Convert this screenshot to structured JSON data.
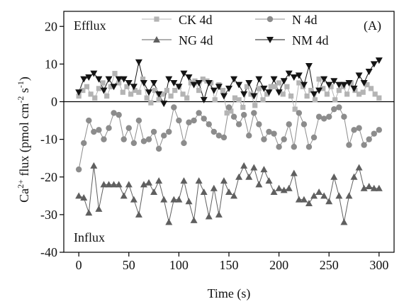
{
  "chart_data": {
    "type": "scatter",
    "panel_label": "(A)",
    "xlabel": "Time (s)",
    "ylabel_parts": {
      "pre": "Ca",
      "sup1": "2+",
      "mid": " flux (pmol cm",
      "sup2": "-2",
      "mid2": " s",
      "sup3": "-1",
      "post": ")"
    },
    "xlim": [
      -15,
      315
    ],
    "ylim": [
      -40,
      24
    ],
    "xticks": [
      0,
      50,
      100,
      150,
      200,
      250,
      300
    ],
    "yticks": [
      -40,
      -30,
      -20,
      -10,
      0,
      10,
      20
    ],
    "zero_line": 0,
    "grid": false,
    "legend_position": "top-center",
    "annotations": [
      {
        "name": "efflux-label",
        "text": "Efflux"
      },
      {
        "name": "influx-label",
        "text": "Influx"
      }
    ],
    "series": [
      {
        "name": "CK 4d",
        "marker": "square",
        "color": "#b4b4b4",
        "x": [
          0,
          4,
          8,
          12,
          16,
          20,
          24,
          28,
          32,
          36,
          40,
          44,
          48,
          52,
          56,
          60,
          64,
          68,
          72,
          76,
          80,
          84,
          88,
          92,
          96,
          100,
          104,
          108,
          112,
          116,
          120,
          124,
          128,
          132,
          136,
          140,
          144,
          148,
          152,
          156,
          160,
          164,
          168,
          172,
          176,
          180,
          184,
          188,
          192,
          196,
          200,
          204,
          208,
          212,
          216,
          220,
          224,
          228,
          232,
          236,
          240,
          244,
          248,
          252,
          256,
          260,
          264,
          268,
          272,
          276,
          280,
          284,
          288,
          292,
          296,
          300
        ],
        "y": [
          1.5,
          3,
          4,
          2,
          1,
          3.5,
          5,
          1.5,
          4,
          7.5,
          5,
          2.5,
          4,
          2,
          3,
          2.5,
          6,
          1,
          -0.3,
          3,
          0.5,
          2,
          3,
          1.5,
          3,
          4,
          2,
          1,
          5,
          5.5,
          3,
          6,
          5.5,
          5,
          0.5,
          4.5,
          3,
          -3,
          -2.5,
          1,
          0.5,
          -1.5,
          4,
          2,
          -1,
          3.5,
          0.5,
          2,
          4,
          4,
          5,
          2,
          4,
          1.5,
          -2,
          5,
          4,
          1.5,
          3,
          0.5,
          6,
          3.5,
          2,
          4,
          0.5,
          3,
          4,
          2,
          5,
          3,
          2,
          2.5,
          4.5,
          3.5,
          2,
          1
        ]
      },
      {
        "name": "N 4d",
        "marker": "circle",
        "color": "#8c8c8c",
        "x": [
          0,
          5,
          10,
          15,
          20,
          25,
          30,
          35,
          40,
          45,
          50,
          55,
          60,
          65,
          70,
          75,
          80,
          85,
          90,
          95,
          100,
          105,
          110,
          115,
          120,
          125,
          130,
          135,
          140,
          145,
          150,
          155,
          160,
          165,
          170,
          175,
          180,
          185,
          190,
          195,
          200,
          205,
          210,
          215,
          220,
          225,
          230,
          235,
          240,
          245,
          250,
          255,
          260,
          265,
          270,
          275,
          280,
          285,
          290,
          295,
          300
        ],
        "y": [
          -18,
          -11,
          -5,
          -8,
          -7.5,
          -10,
          -7,
          -3,
          -3.5,
          -10,
          -7,
          -11,
          -5,
          -10.5,
          -10,
          -8,
          -12.5,
          -9,
          -8,
          -1.5,
          -5,
          -11,
          -5.5,
          -5,
          -3,
          -4.5,
          -6,
          -8,
          -9,
          -9.5,
          -1.5,
          -4,
          -6,
          -3.5,
          -9,
          -3,
          -6,
          -10,
          -8,
          -8.5,
          -12,
          -10,
          -6,
          -12,
          -3,
          -6,
          -12,
          -9.5,
          -4,
          -4.5,
          -4,
          -2,
          -1.5,
          -4,
          -11.5,
          -7.5,
          -7,
          -11.5,
          -10,
          -8.5,
          -7.5
        ]
      },
      {
        "name": "NG 4d",
        "marker": "triangle-up",
        "color": "#5f5f5f",
        "x": [
          0,
          5,
          10,
          15,
          20,
          25,
          30,
          35,
          40,
          45,
          50,
          55,
          60,
          65,
          70,
          75,
          80,
          85,
          90,
          95,
          100,
          105,
          110,
          115,
          120,
          125,
          130,
          135,
          140,
          145,
          150,
          155,
          160,
          165,
          170,
          175,
          180,
          185,
          190,
          195,
          200,
          205,
          210,
          215,
          220,
          225,
          230,
          235,
          240,
          245,
          250,
          255,
          260,
          265,
          270,
          275,
          280,
          285,
          290,
          295,
          300
        ],
        "y": [
          -25,
          -25.5,
          -29.5,
          -17,
          -28.5,
          -22,
          -22,
          -22,
          -22,
          -25,
          -22,
          -26,
          -30,
          -22,
          -21.5,
          -24,
          -21,
          -26,
          -32,
          -26,
          -26,
          -21,
          -26.5,
          -31.5,
          -21,
          -24,
          -30.5,
          -23,
          -30,
          -21,
          -24,
          -25,
          -20,
          -17,
          -20,
          -17.5,
          -22,
          -18,
          -21,
          -24,
          -23,
          -23.5,
          -23,
          -19,
          -26,
          -26,
          -27,
          -25,
          -24,
          -25,
          -26.5,
          -20,
          -25,
          -32,
          -25,
          -20,
          -17.5,
          -23,
          -22.5,
          -23,
          -23
        ]
      },
      {
        "name": "NM 4d",
        "marker": "triangle-down",
        "color": "#141414",
        "x": [
          0,
          5,
          10,
          15,
          20,
          25,
          30,
          35,
          40,
          45,
          50,
          55,
          60,
          65,
          70,
          75,
          80,
          85,
          90,
          95,
          100,
          105,
          110,
          115,
          120,
          125,
          130,
          135,
          140,
          145,
          150,
          155,
          160,
          165,
          170,
          175,
          180,
          185,
          190,
          195,
          200,
          205,
          210,
          215,
          220,
          225,
          230,
          235,
          240,
          245,
          250,
          255,
          260,
          265,
          270,
          275,
          280,
          285,
          290,
          295,
          300
        ],
        "y": [
          2.5,
          6,
          6.5,
          7.5,
          6,
          3,
          6,
          4,
          6,
          6,
          5,
          4,
          10.5,
          5,
          2.5,
          5,
          2,
          -0.5,
          6,
          5,
          4,
          7.5,
          6.5,
          4.5,
          5,
          0.5,
          5,
          3,
          4,
          1.5,
          3.5,
          6,
          4.5,
          2,
          5,
          1.5,
          6,
          3.5,
          2.5,
          6,
          2.5,
          5.5,
          7.5,
          6.5,
          7,
          4.5,
          9.5,
          2,
          3,
          6,
          4.5,
          5.5,
          4.5,
          4.5,
          5,
          3.5,
          7,
          5,
          8,
          10,
          11
        ]
      }
    ]
  }
}
